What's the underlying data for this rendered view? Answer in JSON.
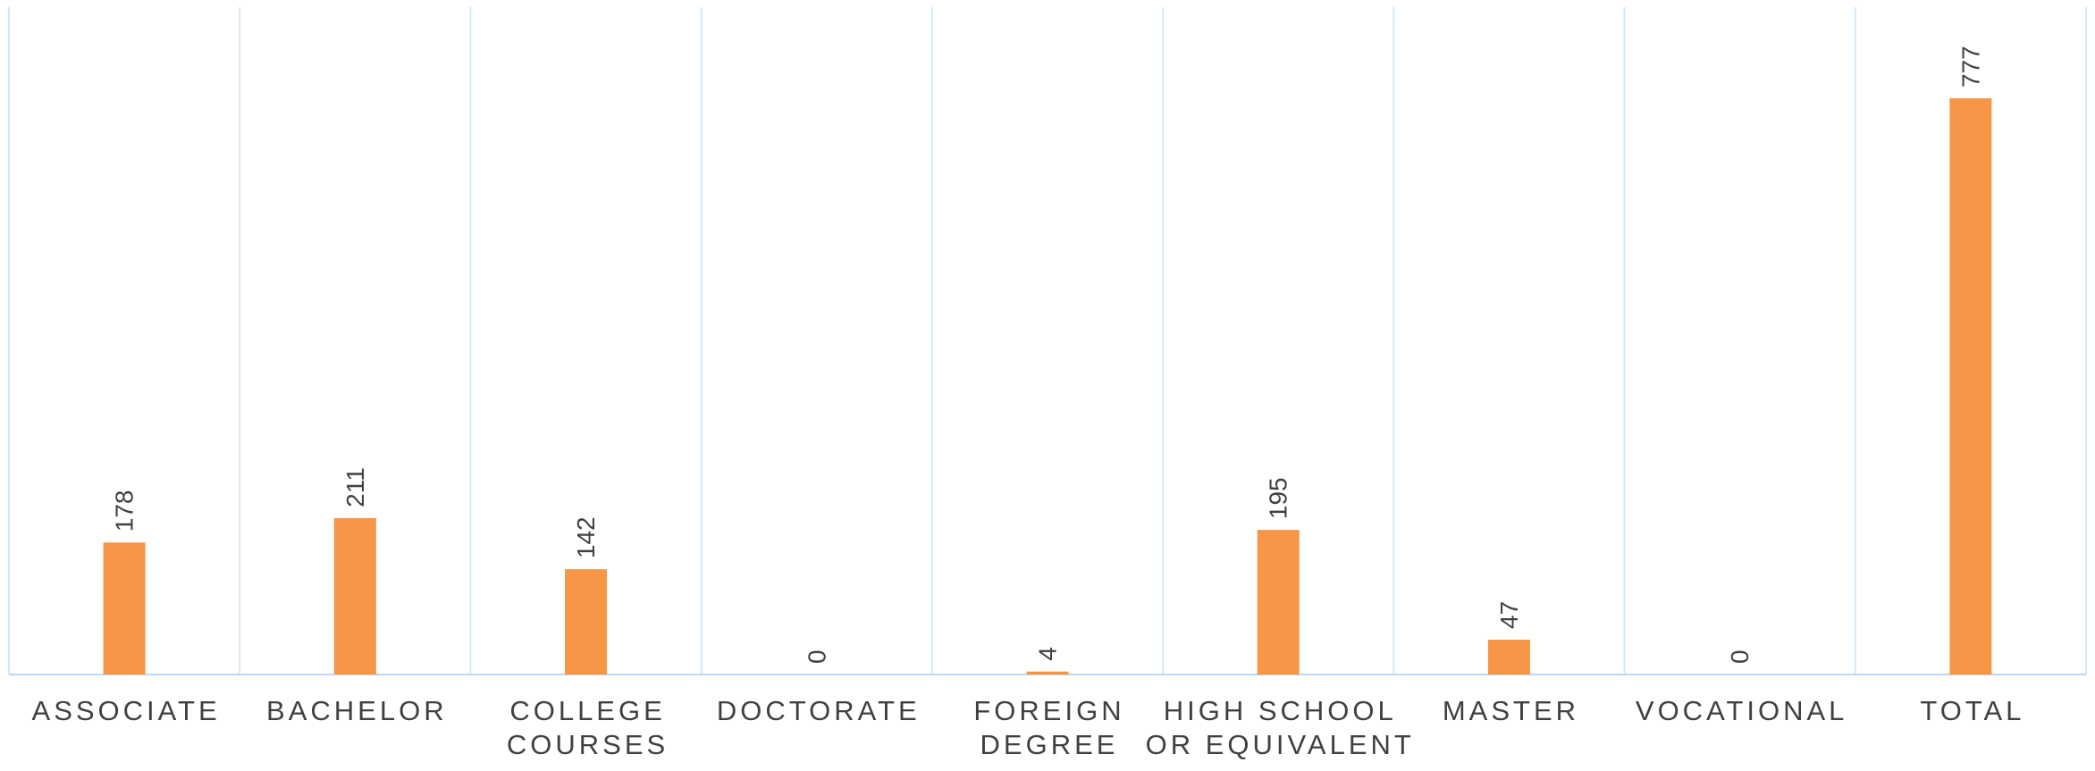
{
  "chart_data": {
    "type": "bar",
    "title": "",
    "xlabel": "",
    "ylabel": "",
    "categories": [
      [
        "ASSOCIATE"
      ],
      [
        "BACHELOR"
      ],
      [
        "COLLEGE",
        "COURSES"
      ],
      [
        "DOCTORATE"
      ],
      [
        "FOREIGN",
        "DEGREE"
      ],
      [
        "HIGH SCHOOL",
        "OR EQUIVALENT"
      ],
      [
        "MASTER"
      ],
      [
        "VOCATIONAL"
      ],
      [
        "TOTAL"
      ]
    ],
    "values": [
      178,
      211,
      142,
      0,
      4,
      195,
      47,
      0,
      777
    ],
    "ylim": [
      0,
      900
    ],
    "grid": "vertical category separators",
    "data_labels": "rotated, above bars",
    "colors": {
      "bar": "#F79646",
      "grid": "#D6E9F8",
      "axis": "#BDD7EE",
      "text": "#404040"
    }
  }
}
